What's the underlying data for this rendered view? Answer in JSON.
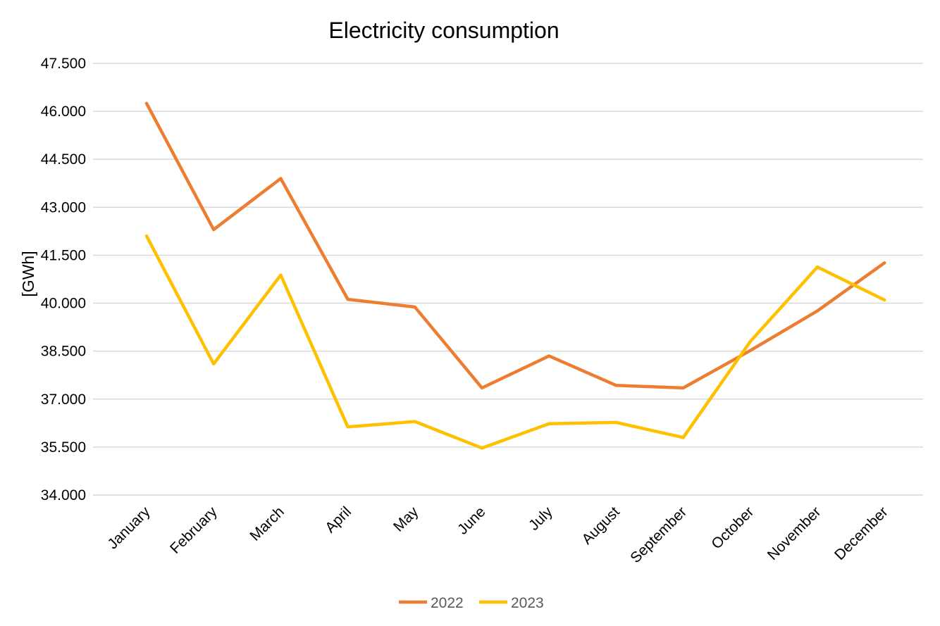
{
  "chart_data": {
    "type": "line",
    "title": "Electricity consumption",
    "xlabel": "",
    "ylabel": "[GWh]",
    "categories": [
      "January",
      "February",
      "March",
      "April",
      "May",
      "June",
      "July",
      "August",
      "September",
      "October",
      "November",
      "December"
    ],
    "series": [
      {
        "name": "2022",
        "color": "#ED7D31",
        "values": [
          46250,
          42300,
          43900,
          40120,
          39880,
          37350,
          38350,
          37430,
          37350,
          38520,
          39760,
          41260
        ]
      },
      {
        "name": "2023",
        "color": "#FFC000",
        "values": [
          42100,
          38100,
          40880,
          36130,
          36300,
          35470,
          36230,
          36270,
          35800,
          38800,
          41130,
          40100
        ]
      }
    ],
    "ylim": [
      34000,
      47500
    ],
    "yticks": [
      34000,
      35500,
      37000,
      38500,
      40000,
      41500,
      43000,
      44500,
      46000,
      47500
    ],
    "ytick_labels": [
      "34.000",
      "35.500",
      "37.000",
      "38.500",
      "40.000",
      "41.500",
      "43.000",
      "44.500",
      "46.000",
      "47.500"
    ],
    "grid": true,
    "legend_position": "bottom"
  }
}
